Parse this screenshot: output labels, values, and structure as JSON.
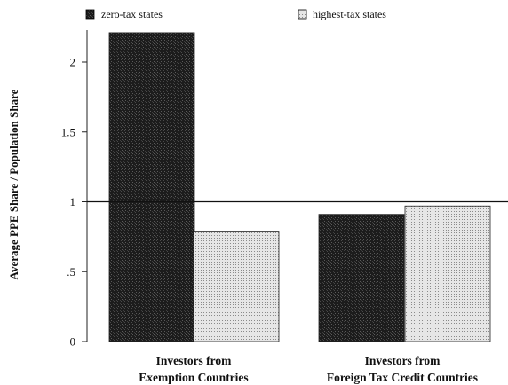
{
  "chart_data": {
    "type": "bar",
    "categories": [
      [
        "Investors from",
        "Exemption Countries"
      ],
      [
        "Investors from",
        "Foreign Tax Credit Countries"
      ]
    ],
    "series": [
      {
        "name": "zero-tax states",
        "values": [
          2.21,
          0.91
        ],
        "color": "#1a1a1a",
        "pattern": "dark-speckle"
      },
      {
        "name": "highest-tax states",
        "values": [
          0.79,
          0.97
        ],
        "color": "#d9d9d9",
        "pattern": "light-dots"
      }
    ],
    "ylabel": "Average PPE Share / Population Share",
    "xlabel": "",
    "yticks": [
      {
        "value": 0,
        "label": "0"
      },
      {
        "value": 0.5,
        "label": ".5"
      },
      {
        "value": 1,
        "label": "1"
      },
      {
        "value": 1.5,
        "label": "1.5"
      },
      {
        "value": 2,
        "label": "2"
      }
    ],
    "ylim": [
      0,
      2.22
    ],
    "reference_line": 1,
    "legend_position": "top",
    "grid": false
  }
}
